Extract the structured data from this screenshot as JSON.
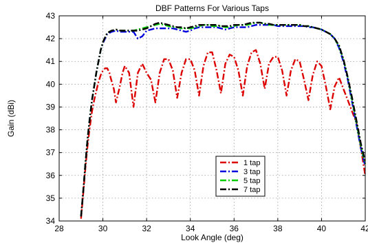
{
  "chart_data": {
    "type": "line",
    "title": "DBF Patterns For Various Taps",
    "xlabel": "Look Angle (deg)",
    "ylabel": "Gain (dBi)",
    "xlim": [
      28,
      42
    ],
    "ylim": [
      34,
      43
    ],
    "xticks": [
      "28",
      "30",
      "32",
      "34",
      "36",
      "38",
      "40",
      "42"
    ],
    "yticks": [
      "34",
      "35",
      "36",
      "37",
      "38",
      "39",
      "40",
      "41",
      "42",
      "43"
    ],
    "grid": true,
    "legend_position": "lower-right",
    "series": [
      {
        "name": "1 tap",
        "color": "#dd0000",
        "dash": "dash-dot",
        "x": [
          29.0,
          29.1,
          29.2,
          29.3,
          29.4,
          29.5,
          29.6,
          29.7,
          29.8,
          29.9,
          30.0,
          30.1,
          30.2,
          30.3,
          30.35,
          30.5,
          30.6,
          30.75,
          30.9,
          31.0,
          31.2,
          31.4,
          31.6,
          31.8,
          32.0,
          32.2,
          32.4,
          32.6,
          32.8,
          33.0,
          33.2,
          33.4,
          33.6,
          33.8,
          34.0,
          34.2,
          34.4,
          34.6,
          34.8,
          35.0,
          35.2,
          35.4,
          35.6,
          35.8,
          36.0,
          36.2,
          36.4,
          36.6,
          36.8,
          37.0,
          37.2,
          37.4,
          37.6,
          37.8,
          38.0,
          38.2,
          38.4,
          38.6,
          38.8,
          39.0,
          39.2,
          39.4,
          39.6,
          39.8,
          40.0,
          40.2,
          40.4,
          40.6,
          40.8,
          41.0,
          41.2,
          41.4,
          41.6,
          41.8,
          42.0
        ],
        "y": [
          34.1,
          35.2,
          36.3,
          37.3,
          38.1,
          38.8,
          39.3,
          39.7,
          40.1,
          40.4,
          40.6,
          40.7,
          40.7,
          40.5,
          40.3,
          39.8,
          39.2,
          39.8,
          40.5,
          40.8,
          40.5,
          39.0,
          40.5,
          40.9,
          40.5,
          40.2,
          39.2,
          40.5,
          41.1,
          41.1,
          40.6,
          39.4,
          40.5,
          41.1,
          41.1,
          40.6,
          39.5,
          40.8,
          41.4,
          41.4,
          40.6,
          39.6,
          40.9,
          41.3,
          41.2,
          40.6,
          39.5,
          40.8,
          41.4,
          41.5,
          40.9,
          39.8,
          40.9,
          41.2,
          41.2,
          40.6,
          39.5,
          40.6,
          41.1,
          41.0,
          40.2,
          39.3,
          40.4,
          41.0,
          40.8,
          39.9,
          38.9,
          39.9,
          40.3,
          39.8,
          39.3,
          38.8,
          38.3,
          37.2,
          36.0
        ]
      },
      {
        "name": "3 tap",
        "color": "#0000dd",
        "dash": "dash-dot",
        "x": [
          29.0,
          29.1,
          29.2,
          29.3,
          29.4,
          29.5,
          29.6,
          29.7,
          29.8,
          29.9,
          30.0,
          30.2,
          30.4,
          30.6,
          30.8,
          31.0,
          31.2,
          31.4,
          31.6,
          31.8,
          32.0,
          32.2,
          32.4,
          32.6,
          32.8,
          33.0,
          33.2,
          33.4,
          33.6,
          33.8,
          34.0,
          34.2,
          34.4,
          34.6,
          34.8,
          35.0,
          35.2,
          35.4,
          35.6,
          35.8,
          36.0,
          36.2,
          36.4,
          36.6,
          36.8,
          37.0,
          37.2,
          37.4,
          37.6,
          37.8,
          38.0,
          38.2,
          38.4,
          38.6,
          38.8,
          39.0,
          39.2,
          39.4,
          39.6,
          39.8,
          40.0,
          40.2,
          40.4,
          40.6,
          40.8,
          41.0,
          41.2,
          41.4,
          41.6,
          41.8,
          42.0
        ],
        "y": [
          34.2,
          35.3,
          36.5,
          37.6,
          38.5,
          39.3,
          39.9,
          40.5,
          41.0,
          41.5,
          41.8,
          42.2,
          42.3,
          42.35,
          42.3,
          42.3,
          42.3,
          42.3,
          42.0,
          42.1,
          42.35,
          42.4,
          42.45,
          42.45,
          42.45,
          42.45,
          42.45,
          42.4,
          42.35,
          42.3,
          42.35,
          42.45,
          42.5,
          42.5,
          42.5,
          42.5,
          42.5,
          42.45,
          42.4,
          42.45,
          42.5,
          42.5,
          42.5,
          42.5,
          42.55,
          42.6,
          42.6,
          42.6,
          42.6,
          42.6,
          42.55,
          42.55,
          42.55,
          42.55,
          42.55,
          42.55,
          42.55,
          42.5,
          42.5,
          42.45,
          42.4,
          42.3,
          42.2,
          42.0,
          41.6,
          41.0,
          40.2,
          39.2,
          38.2,
          37.2,
          36.4
        ]
      },
      {
        "name": "5 tap",
        "color": "#00cc00",
        "dash": "dash-dot",
        "x": [
          29.0,
          29.1,
          29.2,
          29.3,
          29.4,
          29.5,
          29.6,
          29.7,
          29.8,
          29.9,
          30.0,
          30.2,
          30.4,
          30.6,
          30.8,
          31.0,
          31.2,
          31.4,
          31.6,
          31.8,
          32.0,
          32.2,
          32.4,
          32.6,
          32.8,
          33.0,
          33.2,
          33.4,
          33.6,
          33.8,
          34.0,
          34.2,
          34.4,
          34.6,
          34.8,
          35.0,
          35.2,
          35.4,
          35.6,
          35.8,
          36.0,
          36.2,
          36.4,
          36.6,
          36.8,
          37.0,
          37.2,
          37.4,
          37.6,
          37.8,
          38.0,
          38.2,
          38.4,
          38.6,
          38.8,
          39.0,
          39.2,
          39.4,
          39.6,
          39.8,
          40.0,
          40.2,
          40.4,
          40.6,
          40.8,
          41.0,
          41.2,
          41.4,
          41.6,
          41.8,
          42.0
        ],
        "y": [
          34.2,
          35.3,
          36.5,
          37.6,
          38.5,
          39.3,
          39.9,
          40.5,
          41.0,
          41.5,
          41.85,
          42.25,
          42.35,
          42.4,
          42.35,
          42.35,
          42.35,
          42.35,
          42.4,
          42.45,
          42.5,
          42.55,
          42.6,
          42.65,
          42.6,
          42.55,
          42.5,
          42.5,
          42.45,
          42.45,
          42.45,
          42.5,
          42.55,
          42.6,
          42.6,
          42.55,
          42.55,
          42.55,
          42.5,
          42.5,
          42.55,
          42.6,
          42.6,
          42.6,
          42.65,
          42.7,
          42.7,
          42.65,
          42.6,
          42.6,
          42.6,
          42.6,
          42.6,
          42.6,
          42.6,
          42.6,
          42.55,
          42.55,
          42.5,
          42.45,
          42.4,
          42.3,
          42.2,
          42.0,
          41.65,
          41.1,
          40.3,
          39.3,
          38.3,
          37.3,
          36.5
        ]
      },
      {
        "name": "7 tap",
        "color": "#000000",
        "dash": "dash-dot",
        "x": [
          29.0,
          29.1,
          29.2,
          29.3,
          29.4,
          29.5,
          29.6,
          29.7,
          29.8,
          29.9,
          30.0,
          30.2,
          30.4,
          30.6,
          30.8,
          31.0,
          31.2,
          31.4,
          31.6,
          31.8,
          32.0,
          32.2,
          32.4,
          32.6,
          32.8,
          33.0,
          33.2,
          33.4,
          33.6,
          33.8,
          34.0,
          34.2,
          34.4,
          34.6,
          34.8,
          35.0,
          35.2,
          35.4,
          35.6,
          35.8,
          36.0,
          36.2,
          36.4,
          36.6,
          36.8,
          37.0,
          37.2,
          37.4,
          37.6,
          37.8,
          38.0,
          38.2,
          38.4,
          38.6,
          38.8,
          39.0,
          39.2,
          39.4,
          39.6,
          39.8,
          40.0,
          40.2,
          40.4,
          40.6,
          40.8,
          41.0,
          41.2,
          41.4,
          41.6,
          41.8,
          42.0
        ],
        "y": [
          34.2,
          35.3,
          36.5,
          37.6,
          38.5,
          39.3,
          39.9,
          40.5,
          41.0,
          41.5,
          41.85,
          42.25,
          42.35,
          42.4,
          42.35,
          42.35,
          42.35,
          42.35,
          42.35,
          42.4,
          42.45,
          42.55,
          42.65,
          42.7,
          42.65,
          42.6,
          42.55,
          42.5,
          42.5,
          42.45,
          42.5,
          42.55,
          42.6,
          42.6,
          42.6,
          42.6,
          42.6,
          42.55,
          42.55,
          42.55,
          42.6,
          42.6,
          42.6,
          42.65,
          42.7,
          42.7,
          42.7,
          42.65,
          42.65,
          42.6,
          42.6,
          42.6,
          42.6,
          42.6,
          42.6,
          42.6,
          42.55,
          42.55,
          42.5,
          42.45,
          42.4,
          42.3,
          42.2,
          42.0,
          41.7,
          41.1,
          40.3,
          39.4,
          38.4,
          37.4,
          36.6
        ]
      }
    ]
  }
}
